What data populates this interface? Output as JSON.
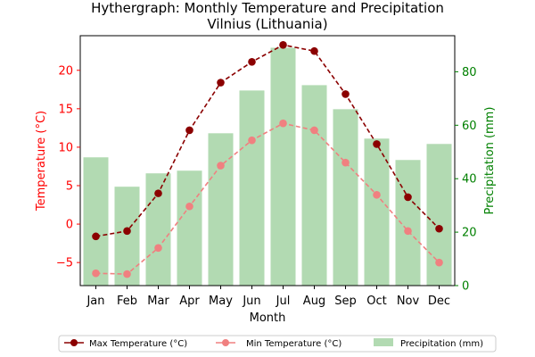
{
  "chart_data": {
    "type": "bar",
    "title_line1": "Hythergraph: Monthly Temperature and Precipitation",
    "title_line2": "Vilnius (Lithuania)",
    "xlabel": "Month",
    "ylabel_left": "Temperature (°C)",
    "ylabel_right": "Precipitation (mm)",
    "categories": [
      "Jan",
      "Feb",
      "Mar",
      "Apr",
      "May",
      "Jun",
      "Jul",
      "Aug",
      "Sep",
      "Oct",
      "Nov",
      "Dec"
    ],
    "left_ylim": [
      -8,
      24.5
    ],
    "left_ticks": [
      -5,
      0,
      5,
      10,
      15,
      20
    ],
    "right_ylim": [
      0,
      93.5
    ],
    "right_ticks": [
      0,
      20,
      40,
      60,
      80
    ],
    "series": [
      {
        "name": "Max Temperature (°C)",
        "kind": "line",
        "axis": "left",
        "color": "#8b0000",
        "values": [
          -1.6,
          -0.9,
          4.0,
          12.2,
          18.4,
          21.1,
          23.3,
          22.5,
          16.9,
          10.4,
          3.5,
          -0.6
        ]
      },
      {
        "name": "Min Temperature (°C)",
        "kind": "line",
        "axis": "left",
        "color": "#f08080",
        "values": [
          -6.4,
          -6.5,
          -3.1,
          2.3,
          7.6,
          10.9,
          13.1,
          12.2,
          8.0,
          3.8,
          -0.9,
          -5.0
        ]
      },
      {
        "name": "Precipitation (mm)",
        "kind": "bar",
        "axis": "right",
        "color": "#b2dab2",
        "values": [
          48,
          37,
          42,
          43,
          57,
          73,
          89,
          75,
          66,
          55,
          47,
          53
        ]
      }
    ],
    "left_axis_color": "#ff0000",
    "right_axis_color": "#008000",
    "legend_position": "bottom"
  }
}
